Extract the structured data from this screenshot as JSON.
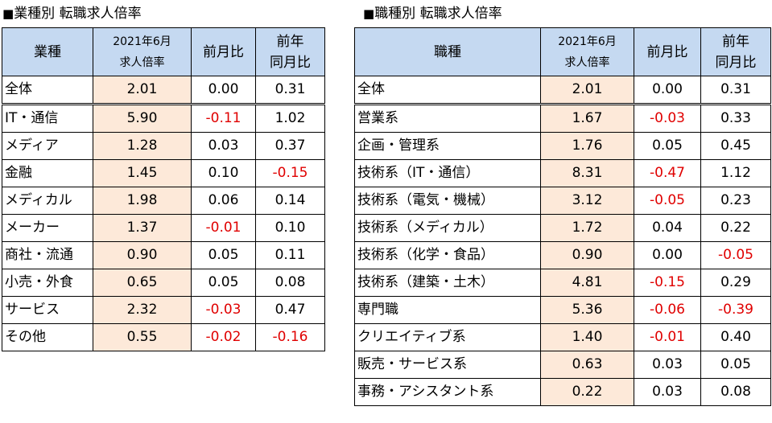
{
  "left": {
    "caption_marker": "■",
    "caption": "業種別 転職求人倍率",
    "headers": {
      "name": "業種",
      "ratio_line1": "2021年6月",
      "ratio_line2": "求人倍率",
      "mom": "前月比",
      "yoy_line1": "前年",
      "yoy_line2": "同月比"
    },
    "rows": [
      {
        "name": "全体",
        "ratio": "2.01",
        "mom": "0.00",
        "yoy": "0.31"
      },
      {
        "name": "IT・通信",
        "ratio": "5.90",
        "mom": "-0.11",
        "yoy": "1.02"
      },
      {
        "name": "メディア",
        "ratio": "1.28",
        "mom": "0.03",
        "yoy": "0.37"
      },
      {
        "name": "金融",
        "ratio": "1.45",
        "mom": "0.10",
        "yoy": "-0.15"
      },
      {
        "name": "メディカル",
        "ratio": "1.98",
        "mom": "0.06",
        "yoy": "0.14"
      },
      {
        "name": "メーカー",
        "ratio": "1.37",
        "mom": "-0.01",
        "yoy": "0.10"
      },
      {
        "name": "商社・流通",
        "ratio": "0.90",
        "mom": "0.05",
        "yoy": "0.11"
      },
      {
        "name": "小売・外食",
        "ratio": "0.65",
        "mom": "0.05",
        "yoy": "0.08"
      },
      {
        "name": "サービス",
        "ratio": "2.32",
        "mom": "-0.03",
        "yoy": "0.47"
      },
      {
        "name": "その他",
        "ratio": "0.55",
        "mom": "-0.02",
        "yoy": "-0.16"
      }
    ]
  },
  "right": {
    "caption_marker": "■",
    "caption": "職種別 転職求人倍率",
    "headers": {
      "name": "職種",
      "ratio_line1": "2021年6月",
      "ratio_line2": "求人倍率",
      "mom": "前月比",
      "yoy_line1": "前年",
      "yoy_line2": "同月比"
    },
    "rows": [
      {
        "name": "全体",
        "ratio": "2.01",
        "mom": "0.00",
        "yoy": "0.31"
      },
      {
        "name": "営業系",
        "ratio": "1.67",
        "mom": "-0.03",
        "yoy": "0.33"
      },
      {
        "name": "企画・管理系",
        "ratio": "1.76",
        "mom": "0.05",
        "yoy": "0.45"
      },
      {
        "name": "技術系（IT・通信）",
        "ratio": "8.31",
        "mom": "-0.47",
        "yoy": "1.12"
      },
      {
        "name": "技術系（電気・機械）",
        "ratio": "3.12",
        "mom": "-0.05",
        "yoy": "0.23"
      },
      {
        "name": "技術系（メディカル）",
        "ratio": "1.72",
        "mom": "0.04",
        "yoy": "0.22"
      },
      {
        "name": "技術系（化学・食品）",
        "ratio": "0.90",
        "mom": "0.00",
        "yoy": "-0.05"
      },
      {
        "name": "技術系（建築・土木）",
        "ratio": "4.81",
        "mom": "-0.15",
        "yoy": "0.29"
      },
      {
        "name": "専門職",
        "ratio": "5.36",
        "mom": "-0.06",
        "yoy": "-0.39"
      },
      {
        "name": "クリエイティブ系",
        "ratio": "1.40",
        "mom": "-0.01",
        "yoy": "0.40"
      },
      {
        "name": "販売・サービス系",
        "ratio": "0.63",
        "mom": "0.03",
        "yoy": "0.05"
      },
      {
        "name": "事務・アシスタント系",
        "ratio": "0.22",
        "mom": "0.03",
        "yoy": "0.08"
      }
    ]
  },
  "colors": {
    "header_bg": "#c5d9f1",
    "ratio_bg": "#fde9d9",
    "negative": "#e00000"
  }
}
